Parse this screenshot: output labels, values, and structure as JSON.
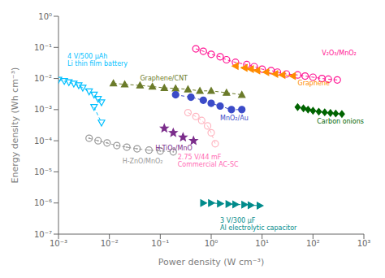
{
  "chart_data": {
    "type": "line",
    "log": true,
    "xlabel": "Power density (W cm⁻³)",
    "ylabel": "Energy density (Wh cm⁻³)",
    "xlim": [
      0.001,
      1000
    ],
    "ylim": [
      1e-07,
      1
    ],
    "xticks": [
      {
        "value": 0.001,
        "label": "10⁻³"
      },
      {
        "value": 0.01,
        "label": "10⁻²"
      },
      {
        "value": 0.1,
        "label": "10⁻¹"
      },
      {
        "value": 1,
        "label": "10⁰"
      },
      {
        "value": 10,
        "label": "10¹"
      },
      {
        "value": 100,
        "label": "10²"
      },
      {
        "value": 1000,
        "label": "10³"
      }
    ],
    "yticks": [
      {
        "value": 1e-07,
        "label": "10⁻⁷"
      },
      {
        "value": 1e-06,
        "label": "10⁻⁶"
      },
      {
        "value": 1e-05,
        "label": "10⁻⁵"
      },
      {
        "value": 0.0001,
        "label": "10⁻⁴"
      },
      {
        "value": 0.001,
        "label": "10⁻³"
      },
      {
        "value": 0.01,
        "label": "10⁻²"
      },
      {
        "value": 0.1,
        "label": "10⁻¹"
      },
      {
        "value": 1,
        "label": "10⁰"
      }
    ],
    "series": [
      {
        "color": "#00BFFF",
        "marker": "open-triangle-down",
        "line_style": "dashed",
        "x": [
          0.001,
          0.0013,
          0.0016,
          0.002,
          0.0025,
          0.003,
          0.004,
          0.005,
          0.006,
          0.007
        ],
        "values": [
          0.009,
          0.0082,
          0.0075,
          0.0068,
          0.006,
          0.005,
          0.0038,
          0.003,
          0.0022,
          0.0017
        ]
      },
      {
        "color": "#00BFFF",
        "marker": "open-triangle-down",
        "line_style": "dashed",
        "x": [
          0.005,
          0.007
        ],
        "values": [
          0.0012,
          0.00038
        ]
      },
      {
        "color": "#6B7B2A",
        "marker": "triangle-up",
        "line_style": "dashed",
        "x": [
          0.012,
          0.02,
          0.04,
          0.07,
          0.12,
          0.2,
          0.35,
          0.6,
          1.0,
          2.0,
          4.0
        ],
        "values": [
          0.007,
          0.0065,
          0.006,
          0.0055,
          0.005,
          0.0048,
          0.0045,
          0.004,
          0.004,
          0.0035,
          0.003
        ]
      },
      {
        "color": "#3B4BC8",
        "marker": "circle",
        "line_style": "dashed",
        "x": [
          0.2,
          0.4,
          0.7,
          1.0,
          1.5,
          2.5,
          4.0
        ],
        "values": [
          0.003,
          0.0025,
          0.002,
          0.0016,
          0.0013,
          0.001,
          0.001
        ]
      },
      {
        "color": "#FF1493",
        "marker": "open-circle",
        "line_style": "dashed",
        "x": [
          0.5,
          0.7,
          1.0,
          1.5,
          2.0,
          3.0,
          5.0,
          7.0,
          10.0,
          15.0,
          20.0,
          30.0,
          50.0,
          70.0,
          100.0,
          150.0,
          200.0,
          300.0
        ],
        "values": [
          0.09,
          0.075,
          0.06,
          0.05,
          0.04,
          0.033,
          0.028,
          0.024,
          0.02,
          0.018,
          0.016,
          0.014,
          0.013,
          0.012,
          0.011,
          0.01,
          0.0095,
          0.009
        ]
      },
      {
        "color": "#FF8C00",
        "marker": "triangle-left",
        "line_style": "dashed",
        "x": [
          3.0,
          4.5,
          6.0,
          8.0,
          12.0,
          18.0,
          25.0,
          40.0
        ],
        "values": [
          0.025,
          0.022,
          0.02,
          0.018,
          0.016,
          0.014,
          0.013,
          0.012
        ]
      },
      {
        "color": "#006400",
        "marker": "diamond",
        "line_style": "dashed",
        "x": [
          50.0,
          65.0,
          80.0,
          100.0,
          130.0,
          170.0,
          220.0,
          280.0,
          370.0
        ],
        "values": [
          0.0012,
          0.0011,
          0.001,
          0.00092,
          0.00086,
          0.00082,
          0.00078,
          0.00075,
          0.00072
        ]
      },
      {
        "color": "#999999",
        "marker": "dotted-circle",
        "line_style": "dashed",
        "x": [
          0.004,
          0.006,
          0.009,
          0.014,
          0.022,
          0.035,
          0.06,
          0.1,
          0.18
        ],
        "values": [
          0.00012,
          0.0001,
          8.5e-05,
          7e-05,
          6.2e-05,
          5.5e-05,
          5e-05,
          4.7e-05,
          4.4e-05
        ]
      },
      {
        "color": "#7B2D8B",
        "marker": "star",
        "line_style": "none",
        "x": [
          0.12,
          0.18,
          0.28,
          0.45
        ],
        "values": [
          0.00025,
          0.00018,
          0.00013,
          0.0001
        ]
      },
      {
        "color": "#FFB6C1",
        "marker": "open-circle",
        "line_style": "dashed",
        "x": [
          0.35,
          0.5,
          0.65,
          0.85,
          1.0,
          1.2
        ],
        "values": [
          0.0008,
          0.0006,
          0.00045,
          0.0003,
          0.00018,
          8e-05
        ]
      },
      {
        "color": "#008B8B",
        "marker": "triangle-right",
        "line_style": "dashed",
        "x": [
          0.7,
          1.0,
          1.5,
          2.2,
          3.0,
          4.5,
          6.0,
          9.0
        ],
        "values": [
          1e-06,
          1e-06,
          9.5e-07,
          9.2e-07,
          9e-07,
          8.8e-07,
          8.5e-07,
          8.2e-07
        ]
      }
    ],
    "annotations": [
      {
        "text": "4 V/500 μAh\nLi thin film battery",
        "x": 0.0015,
        "y": 0.022,
        "color": "#00BFFF"
      },
      {
        "text": "Graphene/CNT",
        "x": 0.04,
        "y": 0.0075,
        "color": "#6B7B2A"
      },
      {
        "text": "MnO₂/Au",
        "x": 1.5,
        "y": 0.0007,
        "color": "#3B4BC8"
      },
      {
        "text": "V₂O₃/MnO₂",
        "x": 150.0,
        "y": 0.05,
        "color": "#FF1493"
      },
      {
        "text": "Graphene",
        "x": 50.0,
        "y": 0.009,
        "color": "#FF8C00"
      },
      {
        "text": "Carbon onions",
        "x": 120.0,
        "y": 0.00055,
        "color": "#006400"
      },
      {
        "text": "H-ZnO/MnO₂",
        "x": 0.018,
        "y": 2.8e-05,
        "color": "#999999"
      },
      {
        "text": "H-TiO₂/MnO",
        "x": 0.08,
        "y": 7.5e-05,
        "color": "#7B2D8B"
      },
      {
        "text": "2.75 V/44 mF\nCommercial AC-SC",
        "x": 0.22,
        "y": 3.8e-05,
        "color": "#FF69B4"
      },
      {
        "text": "3 V/300 μF\nAl electrolytic capacitor",
        "x": 1.5,
        "y": 3.5e-07,
        "color": "#008B8B"
      }
    ]
  }
}
